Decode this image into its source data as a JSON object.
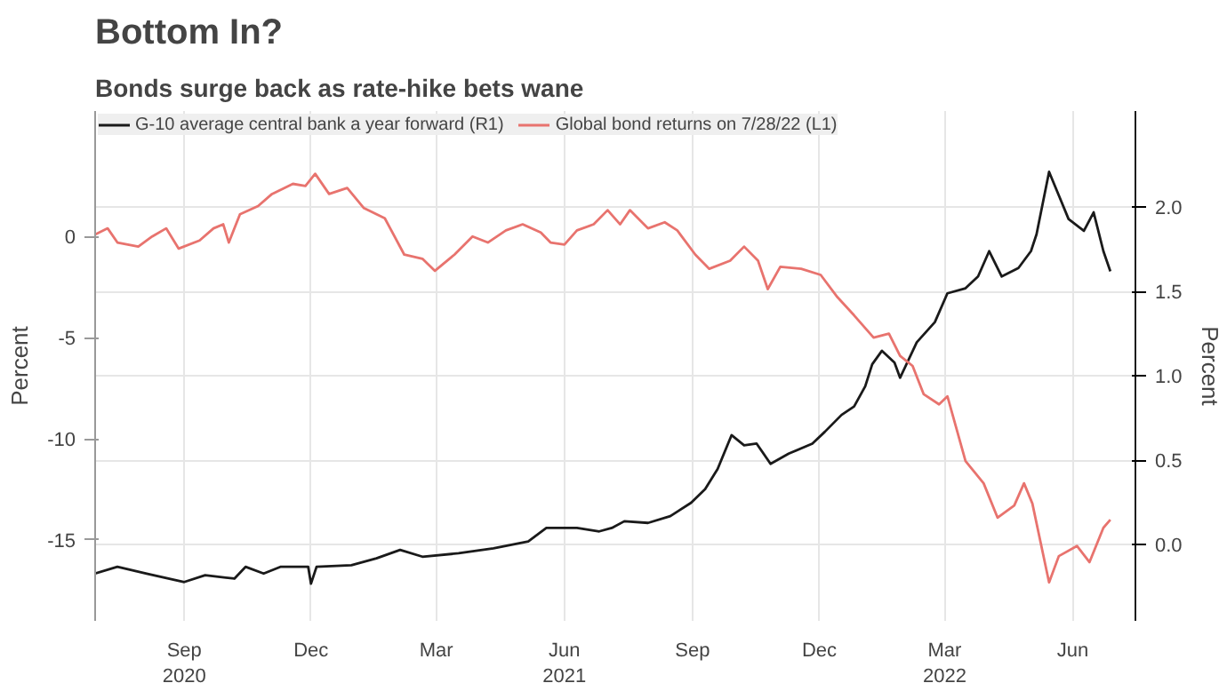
{
  "chart_data": {
    "type": "line",
    "title": "Bottom In?",
    "subtitle": "Bonds surge back as rate-hike bets wane",
    "ylabel": "Percent",
    "y2label": "Percent",
    "series": [
      {
        "name": "G-10 average central bank a year forward (R1)",
        "color": "#1a1a1a",
        "axis": "y2",
        "x": [
          "2020-06-29",
          "2020-07-15",
          "2020-08-05",
          "2020-09-01",
          "2020-09-16",
          "2020-10-07",
          "2020-10-15",
          "2020-10-28",
          "2020-11-09",
          "2020-11-29",
          "2020-12-01",
          "2020-12-05",
          "2020-12-30",
          "2021-01-17",
          "2021-02-03",
          "2021-02-19",
          "2021-03-17",
          "2021-04-11",
          "2021-05-06",
          "2021-05-19",
          "2021-06-10",
          "2021-06-26",
          "2021-07-05",
          "2021-07-14",
          "2021-07-31",
          "2021-08-16",
          "2021-08-31",
          "2021-09-10",
          "2021-09-19",
          "2021-09-29",
          "2021-10-08",
          "2021-10-17",
          "2021-10-27",
          "2021-11-09",
          "2021-11-26",
          "2021-12-05",
          "2021-12-17",
          "2021-12-26",
          "2022-01-03",
          "2022-01-08",
          "2022-01-15",
          "2022-01-24",
          "2022-01-28",
          "2022-02-09",
          "2022-02-22",
          "2022-03-03",
          "2022-03-16",
          "2022-03-25",
          "2022-04-02",
          "2022-04-11",
          "2022-04-23",
          "2022-05-02",
          "2022-05-06",
          "2022-05-15",
          "2022-05-22",
          "2022-05-29",
          "2022-06-09",
          "2022-06-16",
          "2022-06-23",
          "2022-06-28"
        ],
        "values": [
          -0.17,
          -0.13,
          -0.17,
          -0.22,
          -0.18,
          -0.2,
          -0.13,
          -0.17,
          -0.13,
          -0.13,
          -0.23,
          -0.13,
          -0.12,
          -0.08,
          -0.03,
          -0.07,
          -0.05,
          -0.02,
          0.02,
          0.1,
          0.1,
          0.08,
          0.1,
          0.14,
          0.13,
          0.17,
          0.25,
          0.33,
          0.45,
          0.65,
          0.59,
          0.6,
          0.48,
          0.54,
          0.6,
          0.67,
          0.77,
          0.82,
          0.94,
          1.07,
          1.15,
          1.08,
          0.99,
          1.2,
          1.32,
          1.49,
          1.52,
          1.59,
          1.74,
          1.59,
          1.64,
          1.74,
          1.84,
          2.21,
          2.07,
          1.93,
          1.86,
          1.97,
          1.74,
          1.62
        ]
      },
      {
        "name": "Global bond returns on 7/28/22 (L1)",
        "color": "#e8736e",
        "x": [
          "2020-06-29",
          "2020-07-08",
          "2020-07-15",
          "2020-07-30",
          "2020-08-09",
          "2020-08-19",
          "2020-08-28",
          "2020-09-12",
          "2020-09-22",
          "2020-09-29",
          "2020-10-03",
          "2020-10-11",
          "2020-10-24",
          "2020-11-03",
          "2020-11-18",
          "2020-11-27",
          "2020-12-04",
          "2020-12-14",
          "2020-12-27",
          "2021-01-08",
          "2021-01-23",
          "2021-02-06",
          "2021-02-19",
          "2021-02-28",
          "2021-03-14",
          "2021-03-27",
          "2021-04-07",
          "2021-04-20",
          "2021-05-02",
          "2021-05-15",
          "2021-05-22",
          "2021-06-01",
          "2021-06-10",
          "2021-06-22",
          "2021-07-02",
          "2021-07-11",
          "2021-07-18",
          "2021-07-31",
          "2021-08-12",
          "2021-08-21",
          "2021-09-03",
          "2021-09-13",
          "2021-09-28",
          "2021-10-08",
          "2021-10-18",
          "2021-10-25",
          "2021-11-03",
          "2021-11-18",
          "2021-12-02",
          "2021-12-14",
          "2021-12-26",
          "2022-01-09",
          "2022-01-20",
          "2022-01-28",
          "2022-02-06",
          "2022-02-14",
          "2022-02-25",
          "2022-03-03",
          "2022-03-16",
          "2022-03-29",
          "2022-04-08",
          "2022-04-20",
          "2022-04-27",
          "2022-05-03",
          "2022-05-15",
          "2022-05-22",
          "2022-06-04",
          "2022-06-13",
          "2022-06-23",
          "2022-06-28"
        ],
        "values": [
          0.1,
          0.4,
          -0.3,
          -0.5,
          0,
          0.4,
          -0.6,
          -0.2,
          0.4,
          0.6,
          -0.3,
          1.1,
          1.5,
          2.1,
          2.6,
          2.5,
          3.1,
          2.1,
          2.4,
          1.4,
          0.9,
          -0.9,
          -1.1,
          -1.7,
          -0.9,
          0,
          -0.3,
          0.3,
          0.6,
          0.2,
          -0.3,
          -0.4,
          0.3,
          0.6,
          1.3,
          0.6,
          1.3,
          0.4,
          0.7,
          0.3,
          -0.9,
          -1.6,
          -1.2,
          -0.5,
          -1.2,
          -2.6,
          -1.5,
          -1.6,
          -1.9,
          -3.0,
          -3.9,
          -5.0,
          -4.8,
          -5.9,
          -6.4,
          -7.8,
          -8.3,
          -7.9,
          -11.1,
          -12.2,
          -13.9,
          -13.3,
          -12.2,
          -13.2,
          -17.1,
          -15.8,
          -15.3,
          -16.1,
          -14.4,
          -14.0
        ]
      }
    ],
    "xlim": [
      "2020-06-29",
      "2022-07-16"
    ],
    "xticks": [
      {
        "value": "2020-09-01",
        "label": "Sep\n2020"
      },
      {
        "value": "2020-12-01",
        "label": "Dec"
      },
      {
        "value": "2021-03-01",
        "label": "Mar"
      },
      {
        "value": "2021-06-01",
        "label": "Jun\n2021"
      },
      {
        "value": "2021-09-01",
        "label": "Sep"
      },
      {
        "value": "2021-12-01",
        "label": "Dec"
      },
      {
        "value": "2022-03-01",
        "label": "Mar\n2022"
      },
      {
        "value": "2022-06-01",
        "label": "Jun"
      }
    ],
    "ylim": [
      -19,
      6.2
    ],
    "yticks": [
      -15,
      -10,
      -5,
      0
    ],
    "y2lim": [
      -0.45,
      2.57
    ],
    "y2ticks": [
      {
        "value": 0,
        "label": "0.0"
      },
      {
        "value": 0.5,
        "label": "0.5"
      },
      {
        "value": 1,
        "label": "1.0"
      },
      {
        "value": 1.5,
        "label": "1.5"
      },
      {
        "value": 2,
        "label": "2.0"
      }
    ],
    "grid": true,
    "legend": "top left",
    "line_style": "solid"
  }
}
